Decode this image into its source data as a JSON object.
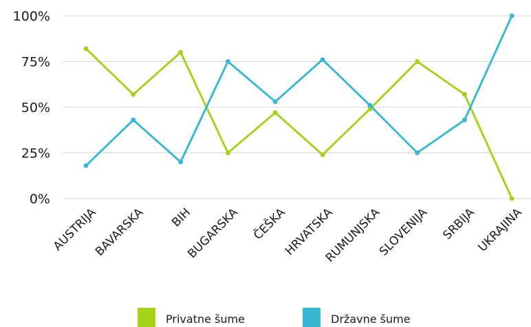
{
  "chart_data": {
    "type": "line",
    "categories": [
      "AUSTRIJA",
      "BAVARSKA",
      "BIH",
      "BUGARSKA",
      "ČEŠKA",
      "HRVATSKA",
      "RUMUNJSKA",
      "SLOVENIJA",
      "SRBIJA",
      "UKRAJINA"
    ],
    "series": [
      {
        "name": "Privatne šume",
        "color": "#a6d11c",
        "values": [
          82,
          57,
          80,
          25,
          47,
          24,
          49,
          75,
          57,
          0
        ]
      },
      {
        "name": "Državne šume",
        "color": "#3ab7d3",
        "values": [
          18,
          43,
          20,
          75,
          53,
          76,
          51,
          25,
          43,
          100
        ]
      }
    ],
    "ylim": [
      0,
      100
    ],
    "yticks": [
      "0%",
      "25%",
      "50%",
      "75%",
      "100%"
    ],
    "grid": true,
    "legend_position": "bottom-center"
  }
}
